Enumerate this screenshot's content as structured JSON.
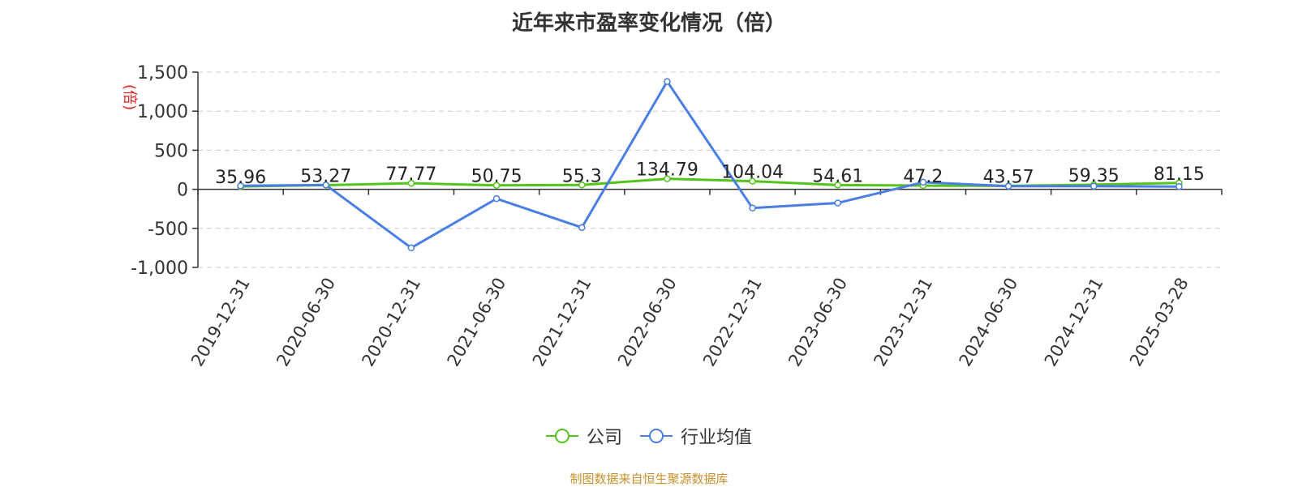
{
  "chart_data": {
    "type": "line",
    "title": "近年来市盈率变化情况（倍）",
    "ylabel": "(倍)",
    "categories": [
      "2019-12-31",
      "2020-06-30",
      "2020-12-31",
      "2021-06-30",
      "2021-12-31",
      "2022-06-30",
      "2022-12-31",
      "2023-06-30",
      "2023-12-31",
      "2024-06-30",
      "2024-12-31",
      "2025-03-28"
    ],
    "y_ticks": [
      "1,500",
      "1,000",
      "500",
      "0",
      "-500",
      "-1,000"
    ],
    "ylim": [
      -1000,
      1500
    ],
    "grid": true,
    "legend_position": "bottom-center",
    "series": [
      {
        "name": "公司",
        "color": "#52c41a",
        "show_labels": true,
        "values": [
          35.96,
          53.27,
          77.77,
          50.75,
          55.3,
          134.79,
          104.04,
          54.61,
          47.2,
          43.57,
          59.35,
          81.15
        ],
        "labels": [
          "35.96",
          "53.27",
          "77.77",
          "50.75",
          "55.3",
          "134.79",
          "104.04",
          "54.61",
          "47.2",
          "43.57",
          "59.35",
          "81.15"
        ]
      },
      {
        "name": "行业均值",
        "color": "#4a7ee0",
        "show_labels": false,
        "values": [
          45,
          55,
          -750,
          -120,
          -490,
          1380,
          -240,
          -175,
          90,
          40,
          40,
          35
        ]
      }
    ]
  },
  "legend": {
    "items": [
      "公司",
      "行业均值"
    ]
  },
  "source": "制图数据来自恒生聚源数据库"
}
